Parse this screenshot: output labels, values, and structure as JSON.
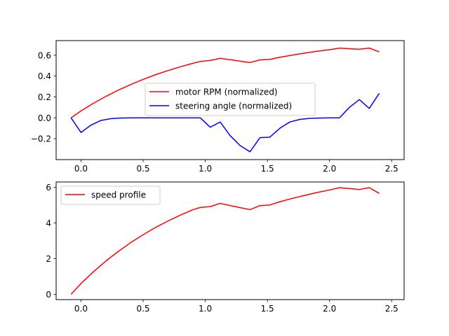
{
  "chart_data": [
    {
      "type": "line",
      "title": "",
      "xlabel": "",
      "ylabel": "",
      "xlim": [
        -0.2,
        2.6
      ],
      "ylim": [
        -0.4,
        0.74
      ],
      "xticks": [
        "0.0",
        "0.5",
        "1.0",
        "1.5",
        "2.0",
        "2.5"
      ],
      "xtick_values": [
        0.0,
        0.5,
        1.0,
        1.5,
        2.0,
        2.5
      ],
      "yticks": [
        "−0.2",
        "0.0",
        "0.2",
        "0.4",
        "0.6"
      ],
      "ytick_values": [
        -0.2,
        0.0,
        0.2,
        0.4,
        0.6
      ],
      "grid": false,
      "legend": "center",
      "series": [
        {
          "name": "motor RPM (normalized)",
          "color": "#ff0000",
          "x": [
            -0.08,
            0.0,
            0.1,
            0.2,
            0.3,
            0.4,
            0.5,
            0.6,
            0.7,
            0.8,
            0.9,
            0.96,
            1.04,
            1.12,
            1.2,
            1.28,
            1.36,
            1.44,
            1.52,
            1.6,
            1.7,
            1.8,
            1.9,
            2.0,
            2.08,
            2.16,
            2.24,
            2.32,
            2.4
          ],
          "y": [
            0.0,
            0.066,
            0.139,
            0.205,
            0.265,
            0.319,
            0.368,
            0.413,
            0.453,
            0.489,
            0.522,
            0.54,
            0.55,
            0.57,
            0.557,
            0.543,
            0.53,
            0.555,
            0.56,
            0.58,
            0.601,
            0.62,
            0.638,
            0.653,
            0.668,
            0.662,
            0.657,
            0.668,
            0.632
          ]
        },
        {
          "name": "steering angle (normalized)",
          "color": "#0000ff",
          "x": [
            -0.08,
            0.0,
            0.08,
            0.16,
            0.24,
            0.32,
            0.4,
            0.48,
            0.56,
            0.64,
            0.72,
            0.8,
            0.88,
            0.96,
            1.04,
            1.12,
            1.2,
            1.28,
            1.36,
            1.44,
            1.52,
            1.6,
            1.68,
            1.76,
            1.84,
            1.92,
            2.0,
            2.08,
            2.16,
            2.24,
            2.32,
            2.4
          ],
          "y": [
            0.0,
            -0.14,
            -0.07,
            -0.025,
            -0.008,
            -0.002,
            0.0,
            0.0,
            0.0,
            0.0,
            0.0,
            0.0,
            0.0,
            0.0,
            -0.09,
            -0.04,
            -0.17,
            -0.265,
            -0.325,
            -0.19,
            -0.185,
            -0.1,
            -0.04,
            -0.015,
            -0.005,
            -0.002,
            0.0,
            0.0,
            0.1,
            0.175,
            0.09,
            0.235
          ]
        }
      ]
    },
    {
      "type": "line",
      "title": "",
      "xlabel": "",
      "ylabel": "",
      "xlim": [
        -0.2,
        2.6
      ],
      "ylim": [
        -0.3,
        6.3
      ],
      "xticks": [
        "0.0",
        "0.5",
        "1.0",
        "1.5",
        "2.0",
        "2.5"
      ],
      "xtick_values": [
        0.0,
        0.5,
        1.0,
        1.5,
        2.0,
        2.5
      ],
      "yticks": [
        "0",
        "2",
        "4",
        "6"
      ],
      "ytick_values": [
        0,
        2,
        4,
        6
      ],
      "grid": false,
      "legend": "upper-left",
      "series": [
        {
          "name": "speed profile",
          "color": "#ff0000",
          "x": [
            -0.08,
            0.0,
            0.1,
            0.2,
            0.3,
            0.4,
            0.5,
            0.6,
            0.7,
            0.8,
            0.9,
            0.96,
            1.04,
            1.12,
            1.2,
            1.28,
            1.36,
            1.44,
            1.52,
            1.6,
            1.7,
            1.8,
            1.9,
            2.0,
            2.08,
            2.16,
            2.24,
            2.32,
            2.4
          ],
          "y": [
            0.0,
            0.6,
            1.26,
            1.86,
            2.4,
            2.9,
            3.34,
            3.75,
            4.11,
            4.44,
            4.74,
            4.87,
            4.92,
            5.1,
            4.98,
            4.86,
            4.75,
            4.97,
            5.01,
            5.19,
            5.38,
            5.55,
            5.71,
            5.85,
            5.98,
            5.93,
            5.88,
            5.98,
            5.66
          ]
        }
      ]
    }
  ]
}
